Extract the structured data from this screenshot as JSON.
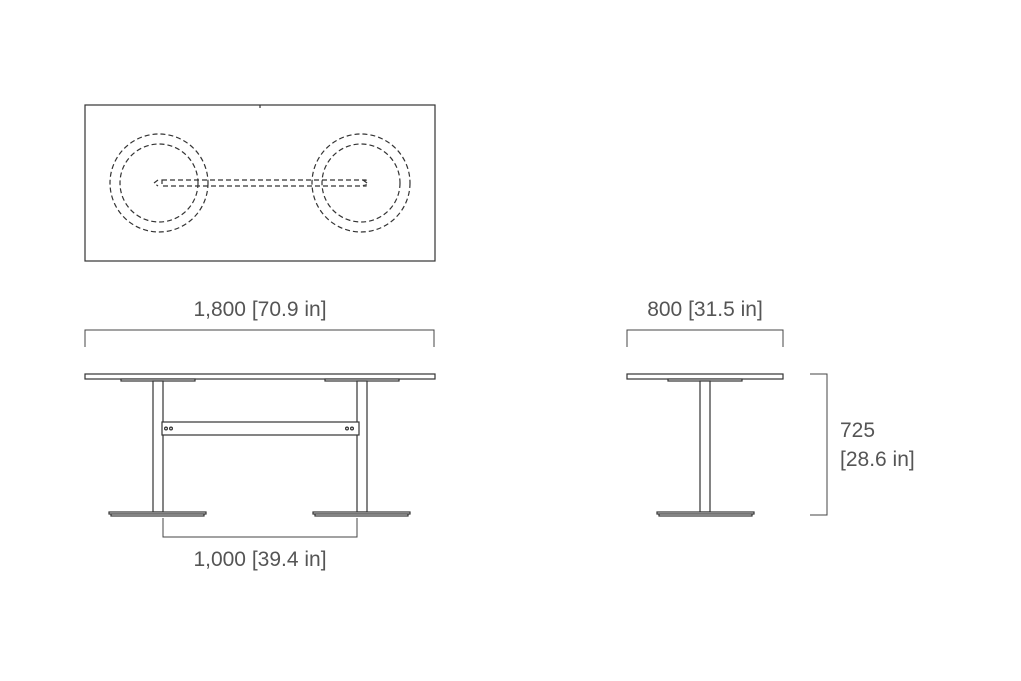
{
  "dimensions": {
    "length": "1,800 [70.9 in]",
    "width": "800 [31.5 in]",
    "leg_spacing": "1,000 [39.4 in]",
    "height_mm": "725",
    "height_in": "[28.6 in]"
  },
  "colors": {
    "line": "#333333",
    "text": "#555555"
  }
}
